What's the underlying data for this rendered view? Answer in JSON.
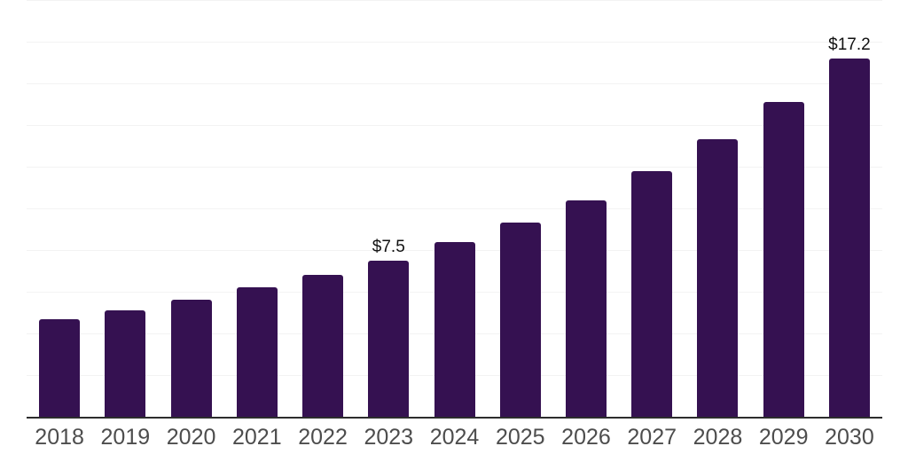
{
  "chart_data": {
    "type": "bar",
    "title": "",
    "xlabel": "",
    "ylabel": "",
    "categories": [
      "2018",
      "2019",
      "2020",
      "2021",
      "2022",
      "2023",
      "2024",
      "2025",
      "2026",
      "2027",
      "2028",
      "2029",
      "2030"
    ],
    "values": [
      4.7,
      5.1,
      5.6,
      6.2,
      6.8,
      7.5,
      8.4,
      9.3,
      10.4,
      11.8,
      13.3,
      15.1,
      17.2
    ],
    "data_labels": {
      "2023": "$7.5",
      "2030": "$17.2"
    },
    "ylim": [
      0,
      20
    ],
    "grid_step": 2,
    "grid_on": true,
    "legend": "none",
    "colors": {
      "bar": "#351151",
      "gridline": "#f3f3f3",
      "axis_line": "#2d2d2d",
      "tick_label": "#4d4d4d",
      "value_label": "#111111",
      "background": "#ffffff"
    }
  }
}
